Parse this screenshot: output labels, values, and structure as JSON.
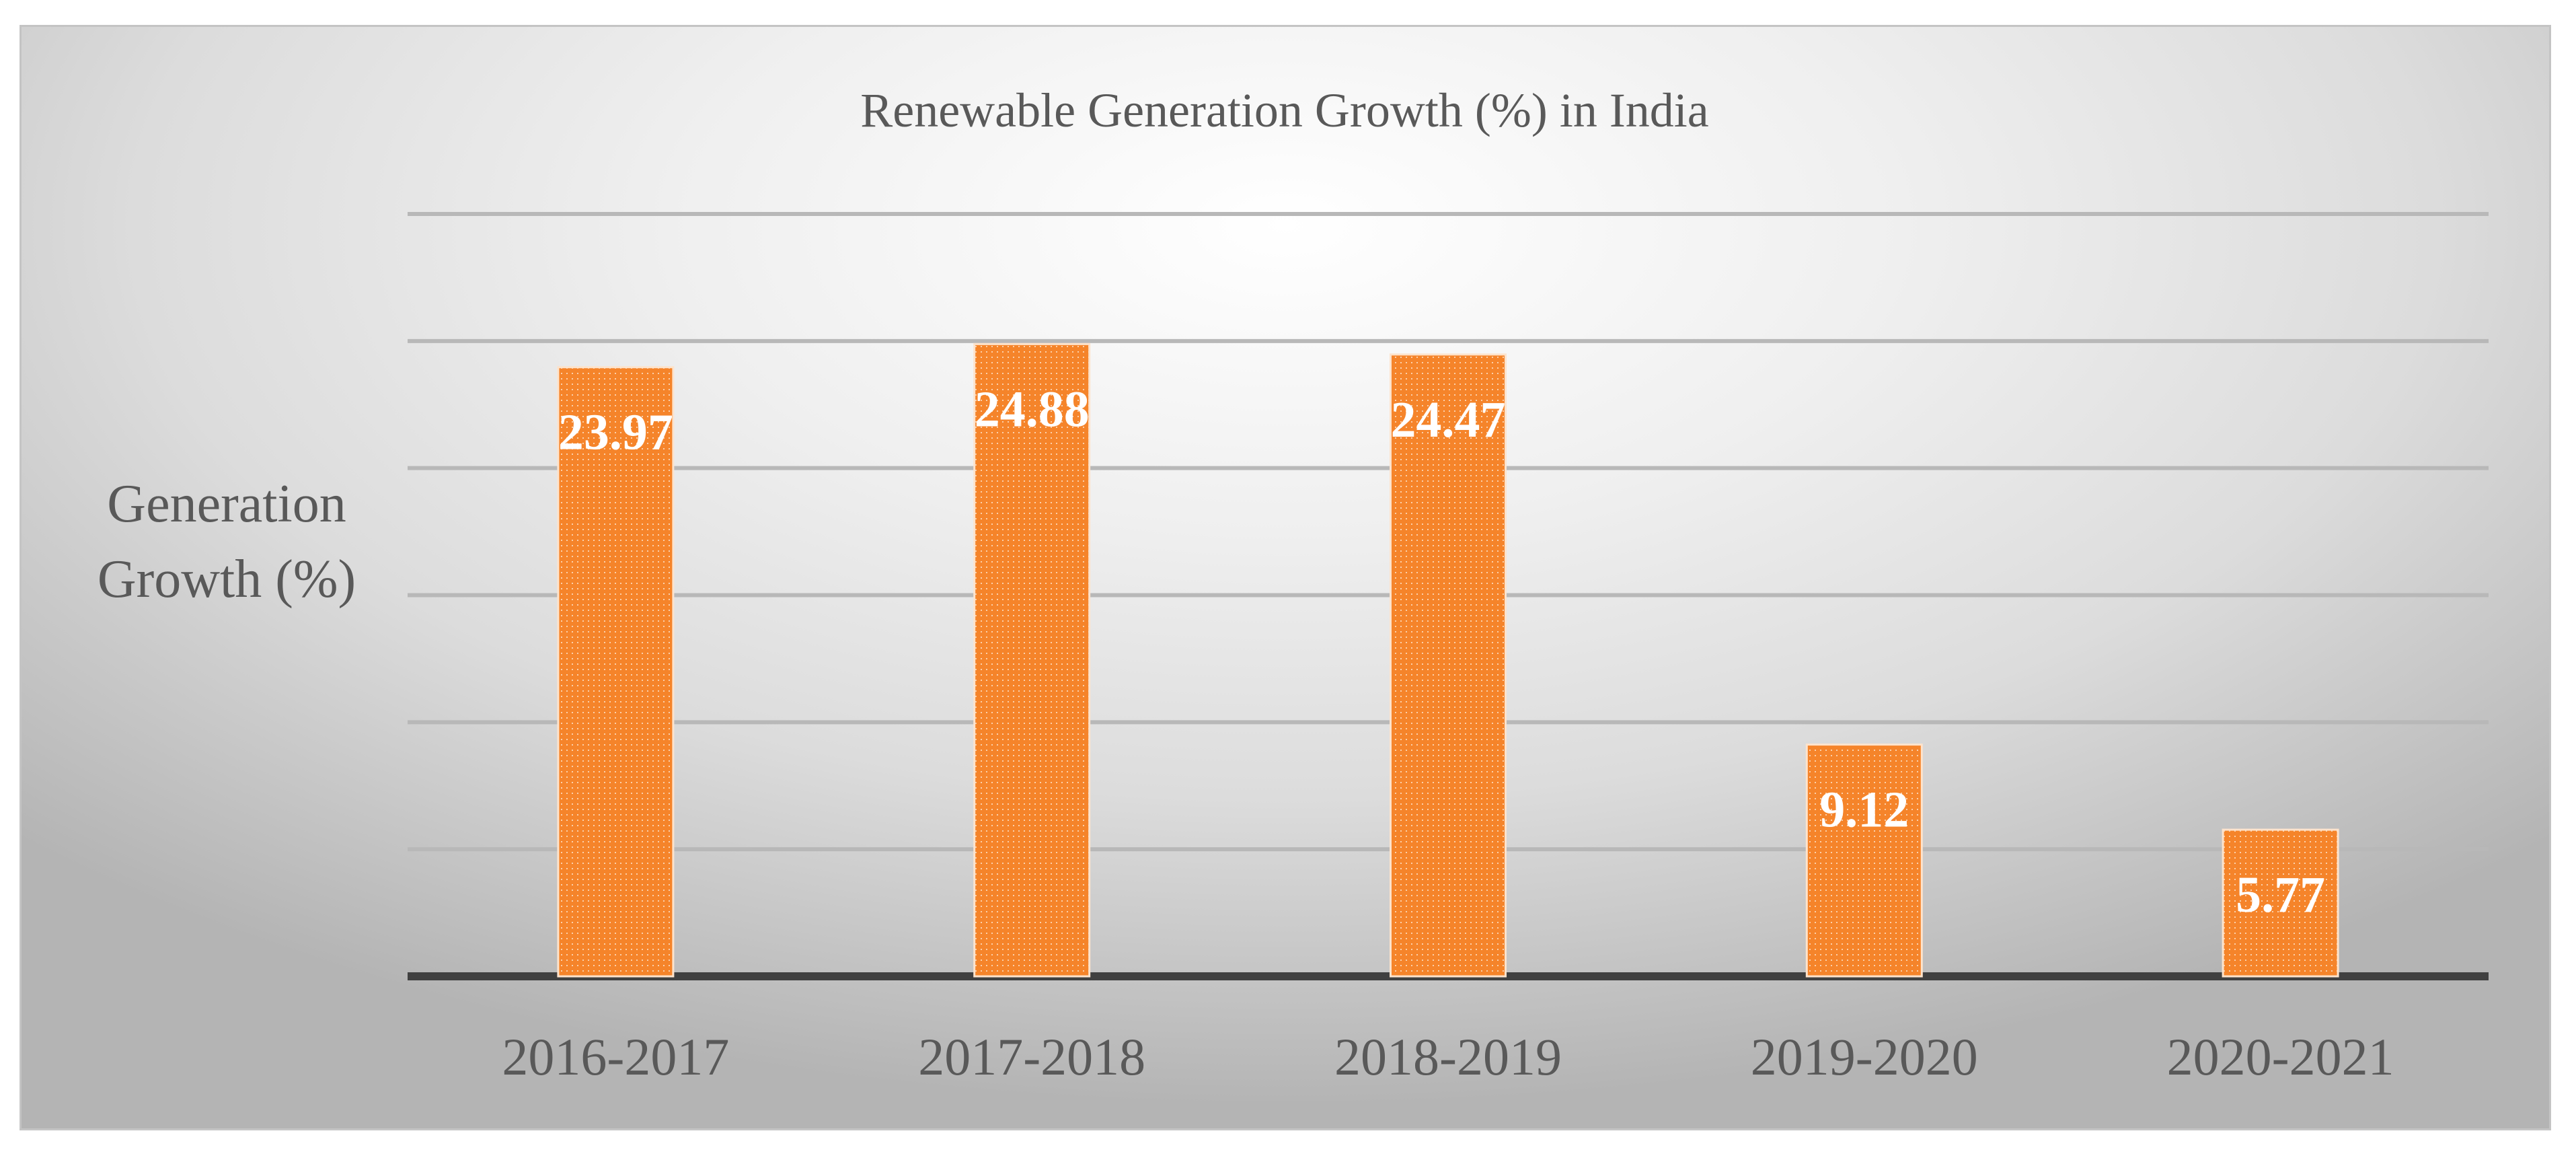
{
  "chart_data": {
    "type": "bar",
    "title": "Renewable Generation Growth (%) in India",
    "xlabel": "",
    "ylabel": [
      "Generation",
      "Growth (%)"
    ],
    "categories": [
      "2016-2017",
      "2017-2018",
      "2018-2019",
      "2019-2020",
      "2020-2021"
    ],
    "values": [
      23.97,
      24.88,
      24.47,
      9.12,
      5.77
    ],
    "data_labels": [
      "23.97",
      "24.88",
      "24.47",
      "9.12",
      "5.77"
    ],
    "ylim": [
      0,
      30
    ],
    "ytick_step": 5,
    "ytick_labels_visible": false,
    "grid": true,
    "legend": "none",
    "colors": {
      "bar": "#f5842a",
      "gridline": "#b8b8b8",
      "axis": "#404040",
      "text": "#595959",
      "data_label": "#ffffff"
    }
  }
}
